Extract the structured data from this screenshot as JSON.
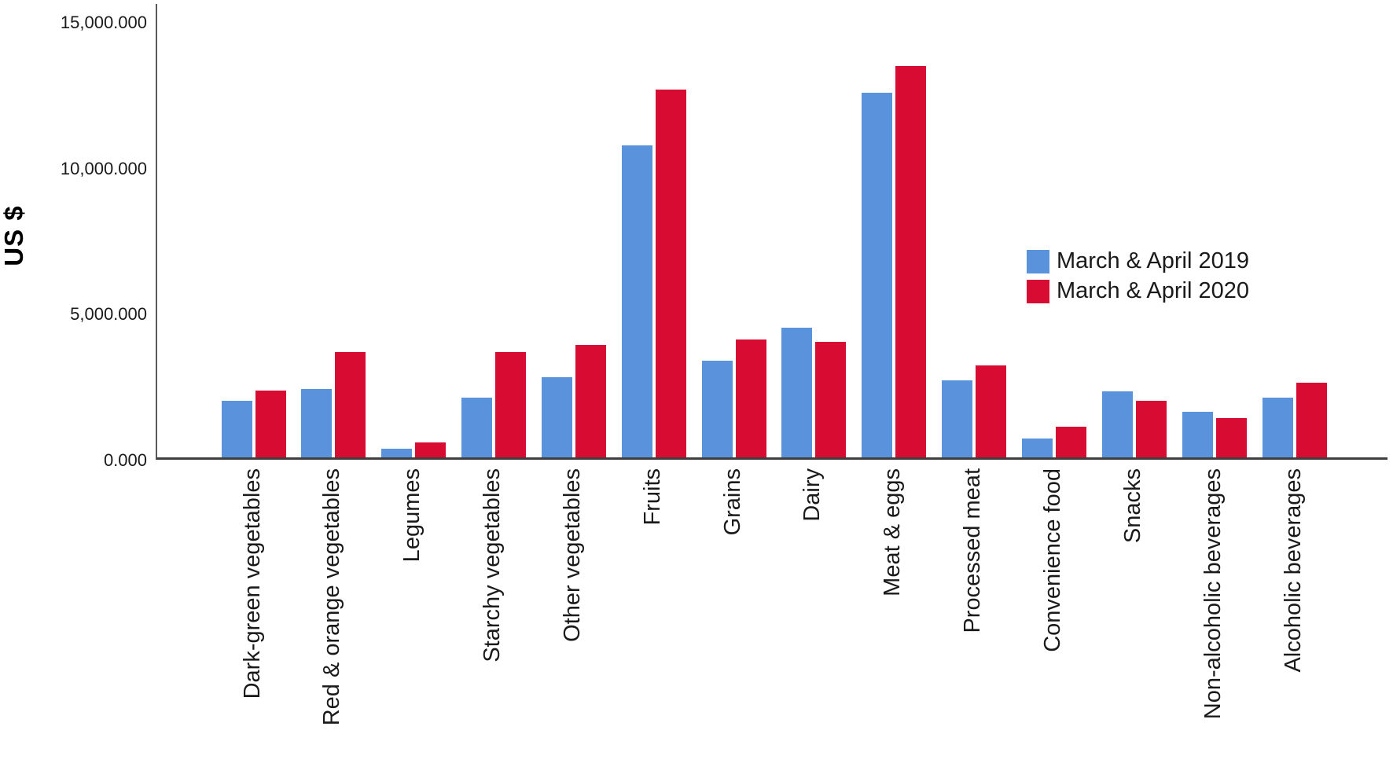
{
  "chart_data": {
    "type": "bar",
    "title": "",
    "xlabel": "",
    "ylabel": "US $",
    "grid": false,
    "legend_position": "center-right",
    "ylim": [
      0,
      15500
    ],
    "yticks": [
      {
        "value": 0,
        "label": "0.000"
      },
      {
        "value": 5000,
        "label": "5,000.000"
      },
      {
        "value": 10000,
        "label": "10,000.000"
      },
      {
        "value": 15000,
        "label": "15,000.000"
      }
    ],
    "categories": [
      "Dark-green vegetables",
      "Red & orange vegetables",
      "Legumes",
      "Starchy vegetables",
      "Other vegetables",
      "Fruits",
      "Grains",
      "Dairy",
      "Meat & eggs",
      "Processed meat",
      "Convenience food",
      "Snacks",
      "Non-alcoholic beverages",
      "Alcoholic beverages"
    ],
    "series": [
      {
        "name": "March & April 2019",
        "color": "#5B92DC",
        "values": [
          1950,
          2350,
          300,
          2050,
          2750,
          10700,
          3300,
          4450,
          12500,
          2650,
          650,
          2250,
          1550,
          2050
        ]
      },
      {
        "name": "March & April 2020",
        "color": "#D80B33",
        "values": [
          2300,
          3600,
          500,
          3600,
          3850,
          12600,
          4050,
          3950,
          13400,
          3150,
          1050,
          1950,
          1350,
          2550
        ]
      }
    ],
    "axis_colors": {
      "y_axis_line": "#595959",
      "x_axis_line": "#3f3f3f"
    }
  }
}
